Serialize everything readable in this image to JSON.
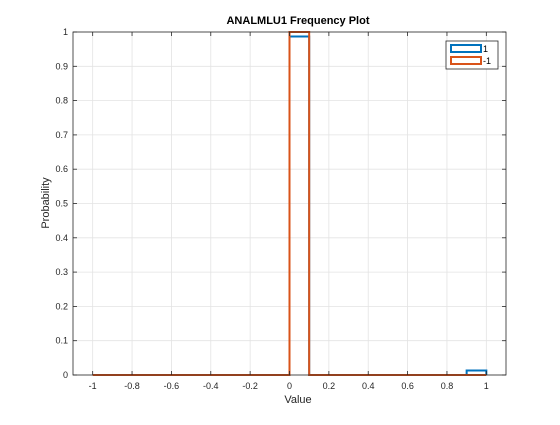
{
  "chart_data": {
    "type": "line",
    "title": "ANALMLU1 Frequency Plot",
    "xlabel": "Value",
    "ylabel": "Probability",
    "xlim": [
      -1.1,
      1.1
    ],
    "ylim": [
      0,
      1
    ],
    "xticks": [
      "-1",
      "-0.8",
      "-0.6",
      "-0.4",
      "-0.2",
      "0",
      "0.2",
      "0.4",
      "0.6",
      "0.8",
      "1"
    ],
    "yticks": [
      "0",
      "0.1",
      "0.2",
      "0.3",
      "0.4",
      "0.5",
      "0.6",
      "0.7",
      "0.8",
      "0.9",
      "1"
    ],
    "grid": true,
    "legend_position": "top-right",
    "series": [
      {
        "name": "1",
        "color": "#0072bd",
        "x": [
          0,
          0,
          0.1,
          0.1,
          0.9,
          0.9,
          1.0,
          1.0
        ],
        "y": [
          0,
          0.987,
          0.987,
          0,
          0,
          0.013,
          0.013,
          0
        ]
      },
      {
        "name": "-1",
        "color": "#d95319",
        "x": [
          -1.0,
          0,
          0,
          0.1,
          0.1,
          1.0
        ],
        "y": [
          0,
          0,
          1,
          1,
          0,
          0
        ]
      }
    ]
  }
}
